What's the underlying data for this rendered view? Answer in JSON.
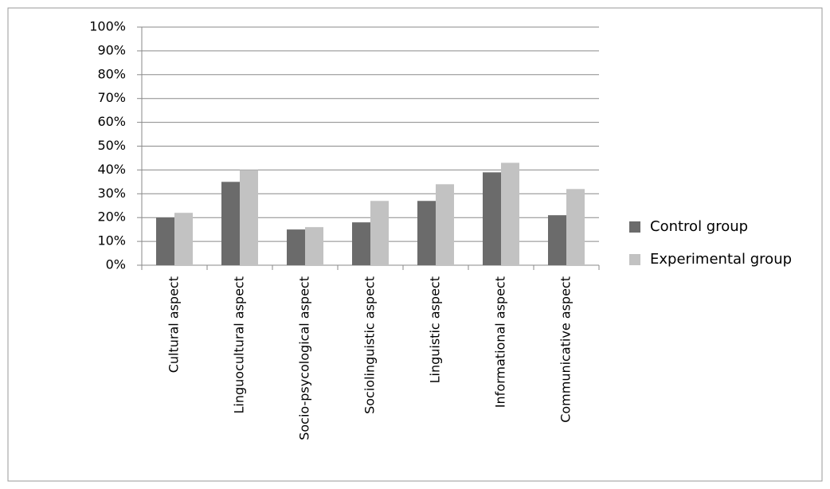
{
  "chart_data": {
    "type": "bar",
    "categories": [
      "Cultural aspect",
      "Linguocultural aspect",
      "Socio-psycological aspect",
      "Sociolinguistic aspect",
      "Linguistic aspect",
      "Informational aspect",
      "Communicative aspect"
    ],
    "series": [
      {
        "name": "Control group",
        "color": "#6b6b6b",
        "values": [
          20,
          35,
          15,
          18,
          27,
          39,
          21
        ]
      },
      {
        "name": "Experimental group",
        "color": "#c2c2c2",
        "values": [
          22,
          40,
          16,
          27,
          34,
          43,
          32
        ]
      }
    ],
    "ylim": [
      0,
      100
    ],
    "yticks": [
      {
        "value": 0,
        "label": "0%"
      },
      {
        "value": 10,
        "label": "10%"
      },
      {
        "value": 20,
        "label": "20%"
      },
      {
        "value": 30,
        "label": "30%"
      },
      {
        "value": 40,
        "label": "40%"
      },
      {
        "value": 50,
        "label": "50%"
      },
      {
        "value": 60,
        "label": "60%"
      },
      {
        "value": 70,
        "label": "70%"
      },
      {
        "value": 80,
        "label": "80%"
      },
      {
        "value": 90,
        "label": "90%"
      },
      {
        "value": 100,
        "label": "100%"
      }
    ],
    "grid": true,
    "legend": "right"
  }
}
